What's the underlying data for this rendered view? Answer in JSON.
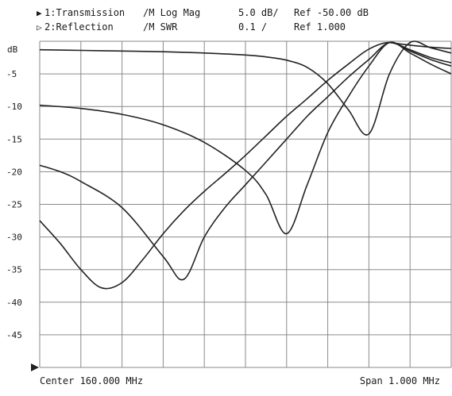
{
  "header": {
    "line1": {
      "marker": "▶",
      "channel": "1:Transmission",
      "format": "/M Log Mag",
      "scale": "5.0 dB/",
      "ref": "Ref -50.00 dB"
    },
    "line2": {
      "marker": "▷",
      "channel": "2:Reflection",
      "format": "/M SWR",
      "scale": "0.1 /",
      "ref": "Ref  1.000"
    }
  },
  "footer": {
    "center": "Center 160.000 MHz",
    "span": "Span 1.000 MHz"
  },
  "colors": {
    "background": "#ffffff",
    "grid": "#8a8a8a",
    "trace": "#222222",
    "text": "#1a1a1a"
  },
  "chart_data": {
    "type": "line",
    "ylabel": "dB",
    "xlim": [
      159.5,
      160.5
    ],
    "ylim": [
      -50,
      0
    ],
    "yticks": [
      -5,
      -10,
      -15,
      -20,
      -25,
      -30,
      -35,
      -40,
      -45
    ],
    "ytick_labels": [
      "-5",
      "-10",
      "-15",
      "-20",
      "-25",
      "-30",
      "-35",
      "-40",
      "-45"
    ],
    "grid": true,
    "x_divisions": 10,
    "y_divisions": 10,
    "series": [
      {
        "x": [
          159.5,
          159.6,
          159.7,
          159.8,
          159.9,
          160.0,
          160.05,
          160.1,
          160.15,
          160.2,
          160.25,
          160.3,
          160.35,
          160.4,
          160.45,
          160.5
        ],
        "y": [
          -1.3,
          -1.4,
          -1.5,
          -1.6,
          -1.8,
          -2.1,
          -2.4,
          -2.9,
          -4.0,
          -6.5,
          -10.5,
          -14.2,
          -5.0,
          -0.2,
          -1.0,
          -1.8
        ]
      },
      {
        "x": [
          159.5,
          159.6,
          159.7,
          159.8,
          159.9,
          160.0,
          160.05,
          160.1,
          160.15,
          160.2,
          160.25,
          160.3,
          160.35,
          160.4,
          160.45,
          160.5
        ],
        "y": [
          -9.8,
          -10.3,
          -11.2,
          -12.8,
          -15.5,
          -19.8,
          -23.5,
          -29.5,
          -22.0,
          -14.0,
          -8.5,
          -3.8,
          -0.2,
          -1.8,
          -3.5,
          -5.0
        ]
      },
      {
        "x": [
          159.5,
          159.55,
          159.6,
          159.7,
          159.8,
          159.85,
          159.9,
          159.95,
          160.0,
          160.05,
          160.1,
          160.15,
          160.2,
          160.25,
          160.3,
          160.35,
          160.4,
          160.45,
          160.5
        ],
        "y": [
          -19.0,
          -20.0,
          -21.5,
          -25.5,
          -33.0,
          -36.5,
          -30.0,
          -25.5,
          -22.0,
          -18.5,
          -15.0,
          -11.5,
          -8.5,
          -5.5,
          -2.8,
          -0.2,
          -1.5,
          -2.8,
          -3.8
        ]
      },
      {
        "x": [
          159.5,
          159.55,
          159.6,
          159.65,
          159.7,
          159.75,
          159.8,
          159.85,
          159.9,
          159.95,
          160.0,
          160.05,
          160.1,
          160.15,
          160.2,
          160.25,
          160.3,
          160.35,
          160.4,
          160.45,
          160.5
        ],
        "y": [
          -27.5,
          -31.0,
          -35.0,
          -37.8,
          -37.0,
          -33.5,
          -29.5,
          -26.0,
          -23.0,
          -20.3,
          -17.5,
          -14.5,
          -11.5,
          -8.8,
          -6.0,
          -3.5,
          -1.2,
          -0.2,
          -1.3,
          -2.5,
          -3.3
        ]
      },
      {
        "x": [
          160.35,
          160.4,
          160.45,
          160.5
        ],
        "y": [
          -0.2,
          -0.6,
          -0.9,
          -1.1
        ]
      }
    ]
  }
}
